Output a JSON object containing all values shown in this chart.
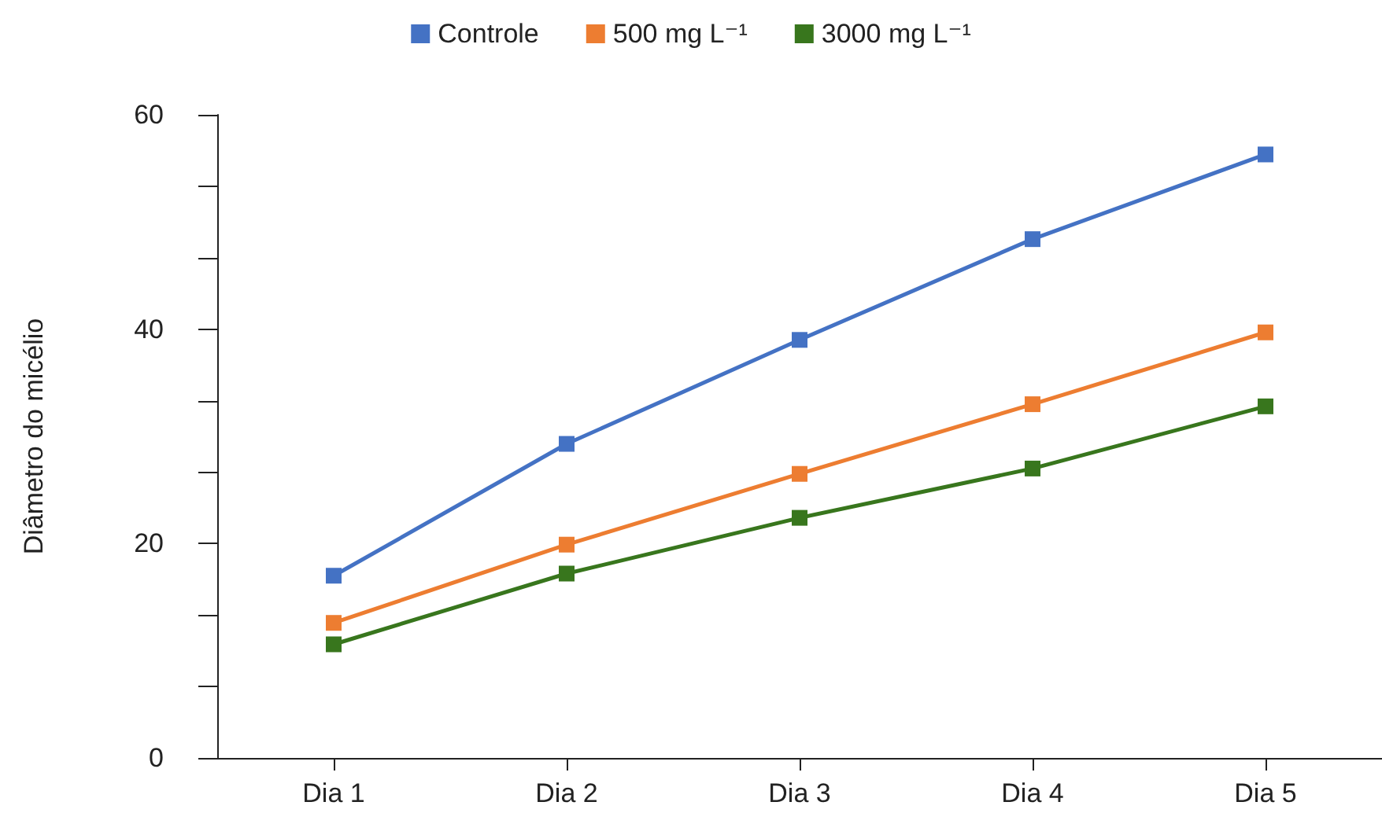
{
  "chart_data": {
    "type": "line",
    "ylabel": "Diâmetro do micélio",
    "categories": [
      "Dia 1",
      "Dia 2",
      "Dia 3",
      "Dia 4",
      "Dia 5"
    ],
    "series": [
      {
        "name": "Controle",
        "color": "#4472c4",
        "values": [
          17.0,
          29.3,
          39.0,
          48.4,
          56.3
        ]
      },
      {
        "name": "500 mg L⁻¹",
        "color": "#ed7d31",
        "values": [
          12.6,
          19.9,
          26.5,
          33.0,
          39.7
        ]
      },
      {
        "name": "3000 mg L⁻¹",
        "color": "#38761d",
        "values": [
          10.6,
          17.2,
          22.4,
          27.0,
          32.8
        ]
      }
    ],
    "ylim": [
      0,
      60
    ],
    "yticks": [
      0,
      {
        "value": 6.67,
        "label": null
      },
      {
        "value": 13.33,
        "label": null
      },
      20,
      {
        "value": 26.67,
        "label": null
      },
      {
        "value": 33.33,
        "label": null
      },
      40,
      {
        "value": 46.67,
        "label": null
      },
      {
        "value": 53.33,
        "label": null
      },
      60
    ],
    "grid": false,
    "legend": "top",
    "marker": "square",
    "line_style": "solid"
  }
}
